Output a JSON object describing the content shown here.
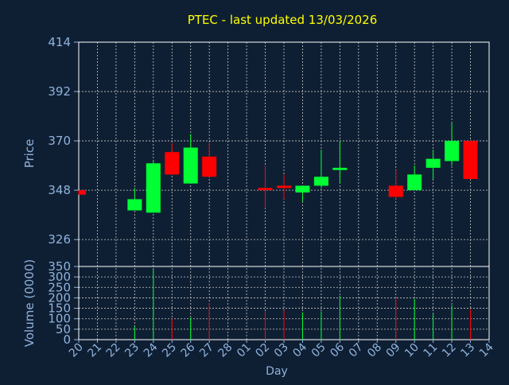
{
  "title": "PTEC - last updated 13/03/2026",
  "colors": {
    "background": "#0f1f33",
    "frame": "#ffffff",
    "grid": "#c8c8c8",
    "title": "#ffff00",
    "axis_text": "#8fb3dd",
    "up": "#00ff33",
    "down": "#ff0000"
  },
  "chart_data": [
    {
      "type": "candlestick",
      "title": "PTEC - last updated 13/03/2026",
      "ylabel": "Price",
      "ylim": [
        314,
        414
      ],
      "yticks": [
        326,
        348,
        370,
        392,
        414
      ],
      "grid": true,
      "categories": [
        "20",
        "21",
        "22",
        "23",
        "24",
        "25",
        "26",
        "27",
        "28",
        "01",
        "02",
        "03",
        "04",
        "05",
        "06",
        "07",
        "08",
        "09",
        "10",
        "11",
        "12",
        "13",
        "14"
      ],
      "candles": [
        {
          "day": "20",
          "open": 348,
          "high": 348,
          "low": 346,
          "close": 346
        },
        {
          "day": "23",
          "open": 339,
          "high": 349,
          "low": 339,
          "close": 344
        },
        {
          "day": "24",
          "open": 338,
          "high": 361,
          "low": 338,
          "close": 360
        },
        {
          "day": "25",
          "open": 365,
          "high": 369,
          "low": 355,
          "close": 355
        },
        {
          "day": "26",
          "open": 351,
          "high": 373,
          "low": 351,
          "close": 367
        },
        {
          "day": "27",
          "open": 363,
          "high": 369,
          "low": 354,
          "close": 354
        },
        {
          "day": "02",
          "open": 349,
          "high": 359,
          "low": 340,
          "close": 348
        },
        {
          "day": "03",
          "open": 350,
          "high": 355,
          "low": 344,
          "close": 349
        },
        {
          "day": "04",
          "open": 347,
          "high": 350,
          "low": 343,
          "close": 350
        },
        {
          "day": "05",
          "open": 350,
          "high": 366,
          "low": 349,
          "close": 354
        },
        {
          "day": "06",
          "open": 357,
          "high": 370,
          "low": 351,
          "close": 358
        },
        {
          "day": "09",
          "open": 350,
          "high": 357,
          "low": 344,
          "close": 345
        },
        {
          "day": "10",
          "open": 348,
          "high": 359,
          "low": 348,
          "close": 355
        },
        {
          "day": "11",
          "open": 358,
          "high": 366,
          "low": 353,
          "close": 362
        },
        {
          "day": "12",
          "open": 361,
          "high": 378,
          "low": 359,
          "close": 370
        },
        {
          "day": "13",
          "open": 370,
          "high": 370,
          "low": 353,
          "close": 353
        }
      ]
    },
    {
      "type": "bar",
      "ylabel": "Volume (0000)",
      "xlabel": "Day",
      "ylim": [
        0,
        350
      ],
      "yticks": [
        0,
        50,
        100,
        150,
        200,
        250,
        300,
        350
      ],
      "grid": true,
      "categories": [
        "20",
        "21",
        "22",
        "23",
        "24",
        "25",
        "26",
        "27",
        "28",
        "01",
        "02",
        "03",
        "04",
        "05",
        "06",
        "07",
        "08",
        "09",
        "10",
        "11",
        "12",
        "13",
        "14"
      ],
      "bars": [
        {
          "day": "23",
          "value": 65,
          "direction": "up"
        },
        {
          "day": "24",
          "value": 335,
          "direction": "up"
        },
        {
          "day": "25",
          "value": 100,
          "direction": "down"
        },
        {
          "day": "26",
          "value": 105,
          "direction": "up"
        },
        {
          "day": "27",
          "value": 175,
          "direction": "down"
        },
        {
          "day": "02",
          "value": 135,
          "direction": "down"
        },
        {
          "day": "03",
          "value": 140,
          "direction": "down"
        },
        {
          "day": "04",
          "value": 130,
          "direction": "up"
        },
        {
          "day": "05",
          "value": 135,
          "direction": "up"
        },
        {
          "day": "06",
          "value": 210,
          "direction": "up"
        },
        {
          "day": "09",
          "value": 200,
          "direction": "down"
        },
        {
          "day": "10",
          "value": 195,
          "direction": "up"
        },
        {
          "day": "11",
          "value": 125,
          "direction": "up"
        },
        {
          "day": "12",
          "value": 165,
          "direction": "up"
        },
        {
          "day": "13",
          "value": 145,
          "direction": "down"
        }
      ]
    }
  ]
}
